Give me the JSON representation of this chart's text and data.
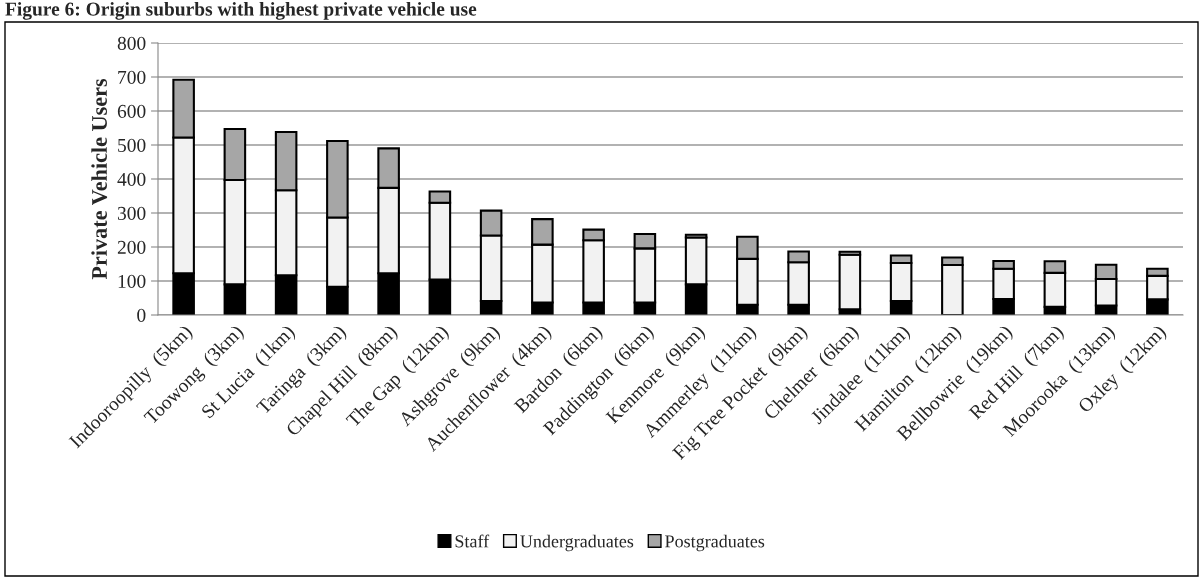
{
  "chart_data": {
    "type": "bar",
    "title": "Figure 6: Origin suburbs with highest private vehicle use",
    "ylabel": "Private Vehicle Users",
    "categories": [
      "Indooroopilly  (5km)",
      "Toowong  (3km)",
      "St Lucia  (1km)",
      "Taringa  (3km)",
      "Chapel Hill  (8km)",
      "The Gap  (12km)",
      "Ashgrove  (9km)",
      "Auchenflower  (4km)",
      "Bardon  (6km)",
      "Paddington  (6km)",
      "Kenmore  (9km)",
      "Ammerley  (11km)",
      "Fig Tree Pocket  (9km)",
      "Chelmer  (6km)",
      "Jindalee  (11km)",
      "Hamilton  (12km)",
      "Bellbowrie  (19km)",
      "Red Hill  (7km)",
      "Moorooka  (13km)",
      "Oxley  (12km)"
    ],
    "series": [
      {
        "name": "Staff",
        "color": "#000000",
        "values": [
          123,
          90,
          117,
          83,
          123,
          104,
          41,
          37,
          37,
          37,
          90,
          30,
          30,
          17,
          41,
          0,
          47,
          24,
          28,
          46
        ]
      },
      {
        "name": "Undergraduates",
        "color": "#f2f2f2",
        "values": [
          399,
          307,
          250,
          204,
          251,
          226,
          193,
          170,
          183,
          159,
          138,
          135,
          125,
          160,
          112,
          147,
          89,
          100,
          78,
          69
        ]
      },
      {
        "name": "Postgraduates",
        "color": "#a6a6a6",
        "values": [
          170,
          150,
          171,
          225,
          116,
          33,
          73,
          75,
          31,
          42,
          8,
          65,
          32,
          9,
          22,
          22,
          23,
          34,
          42,
          21
        ]
      }
    ],
    "stacked": true,
    "ylim": [
      0,
      800
    ],
    "yticks": [
      0,
      100,
      200,
      300,
      400,
      500,
      600,
      700,
      800
    ],
    "grid": "y",
    "legend": "bottom"
  }
}
